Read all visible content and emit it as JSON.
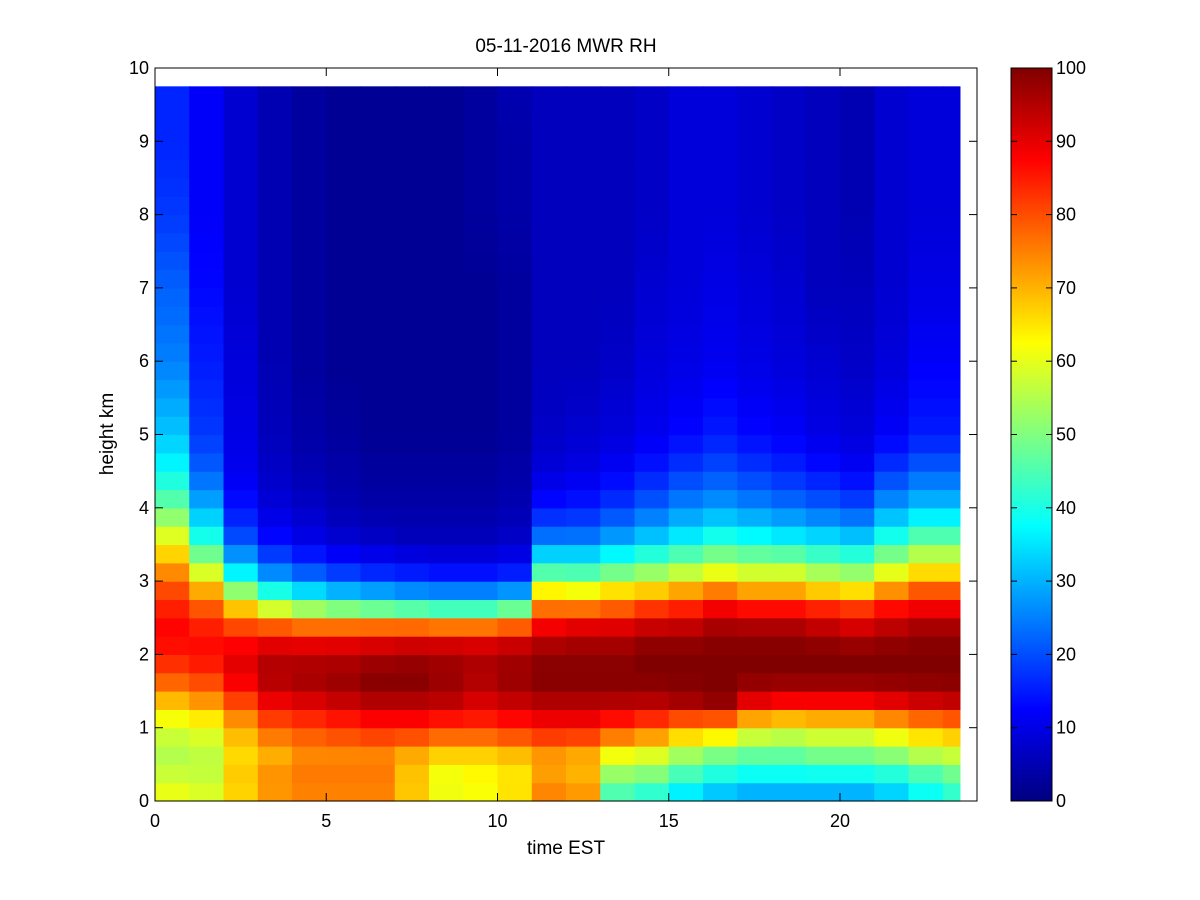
{
  "chart_data": {
    "type": "heatmap",
    "title": "05-11-2016 MWR RH",
    "xlabel": "time EST",
    "ylabel": "height km",
    "xlim": [
      0,
      24
    ],
    "ylim": [
      0,
      10
    ],
    "x_ticks": [
      0,
      5,
      10,
      15,
      20
    ],
    "y_ticks": [
      0,
      1,
      2,
      3,
      4,
      5,
      6,
      7,
      8,
      9,
      10
    ],
    "colorbar": {
      "colormap": "jet",
      "range": [
        0,
        100
      ],
      "ticks": [
        0,
        10,
        20,
        30,
        40,
        50,
        60,
        70,
        80,
        90,
        100
      ]
    },
    "x_bins_hours": [
      0,
      1,
      2,
      3,
      4,
      5,
      6,
      7,
      8,
      9,
      10,
      11,
      12,
      13,
      14,
      15,
      16,
      17,
      18,
      19,
      20,
      21,
      22,
      23
    ],
    "data_extent": {
      "x": [
        0,
        23.5
      ],
      "y": [
        0,
        9.75
      ]
    },
    "profiles": {
      "height_km": [
        0,
        0.3,
        0.6,
        1.0,
        1.4,
        1.7,
        2.0,
        2.3,
        2.6,
        2.9,
        3.2,
        3.6,
        4.0,
        4.5,
        5.0,
        6.0,
        7.0,
        8.0,
        9.0,
        9.75
      ],
      "rh_by_hour": [
        [
          62,
          58,
          55,
          58,
          70,
          80,
          85,
          88,
          85,
          80,
          72,
          60,
          48,
          38,
          32,
          25,
          22,
          18,
          16,
          16
        ],
        [
          60,
          57,
          56,
          60,
          74,
          82,
          87,
          86,
          80,
          70,
          55,
          40,
          30,
          22,
          18,
          15,
          13,
          12,
          12,
          12
        ],
        [
          66,
          68,
          66,
          70,
          82,
          90,
          90,
          84,
          70,
          50,
          32,
          20,
          14,
          11,
          10,
          9,
          8,
          8,
          8,
          8
        ],
        [
          72,
          74,
          70,
          78,
          90,
          96,
          94,
          85,
          60,
          38,
          22,
          13,
          9,
          7,
          6,
          5,
          5,
          5,
          5,
          5
        ],
        [
          74,
          76,
          74,
          80,
          92,
          97,
          94,
          84,
          55,
          32,
          18,
          10,
          7,
          5,
          4,
          3,
          3,
          3,
          3,
          3
        ],
        [
          74,
          76,
          74,
          82,
          94,
          98,
          94,
          85,
          52,
          28,
          15,
          8,
          5,
          4,
          3,
          2,
          2,
          2,
          2,
          2
        ],
        [
          74,
          76,
          74,
          84,
          96,
          100,
          95,
          86,
          50,
          26,
          13,
          7,
          4,
          3,
          2,
          2,
          2,
          2,
          2,
          2
        ],
        [
          68,
          68,
          70,
          84,
          96,
          100,
          96,
          87,
          48,
          24,
          12,
          6,
          4,
          3,
          2,
          2,
          2,
          2,
          2,
          2
        ],
        [
          62,
          60,
          66,
          82,
          95,
          98,
          96,
          86,
          46,
          23,
          11,
          6,
          4,
          3,
          2,
          2,
          2,
          2,
          2,
          2
        ],
        [
          62,
          62,
          66,
          82,
          92,
          96,
          95,
          86,
          46,
          23,
          11,
          6,
          4,
          3,
          2,
          2,
          2,
          3,
          3,
          3
        ],
        [
          66,
          64,
          68,
          84,
          94,
          98,
          96,
          88,
          50,
          25,
          12,
          7,
          5,
          4,
          3,
          3,
          3,
          4,
          4,
          5
        ],
        [
          76,
          72,
          72,
          86,
          96,
          100,
          98,
          92,
          78,
          62,
          40,
          24,
          14,
          9,
          7,
          6,
          6,
          6,
          6,
          6
        ],
        [
          74,
          70,
          70,
          86,
          96,
          100,
          98,
          94,
          78,
          60,
          40,
          24,
          15,
          10,
          8,
          6,
          6,
          6,
          6,
          6
        ],
        [
          42,
          50,
          60,
          82,
          96,
          100,
          98,
          94,
          80,
          64,
          44,
          28,
          18,
          12,
          9,
          7,
          6,
          6,
          6,
          6
        ],
        [
          38,
          48,
          58,
          78,
          96,
          100,
          100,
          96,
          84,
          66,
          48,
          32,
          22,
          15,
          11,
          9,
          8,
          7,
          7,
          7
        ],
        [
          32,
          42,
          52,
          72,
          98,
          100,
          100,
          96,
          86,
          70,
          52,
          36,
          26,
          18,
          13,
          10,
          9,
          9,
          9,
          9
        ],
        [
          28,
          38,
          48,
          70,
          100,
          100,
          100,
          98,
          90,
          74,
          56,
          40,
          28,
          20,
          15,
          11,
          10,
          9,
          9,
          9
        ],
        [
          26,
          36,
          46,
          62,
          92,
          100,
          100,
          98,
          88,
          70,
          54,
          38,
          26,
          18,
          13,
          10,
          9,
          8,
          8,
          8
        ],
        [
          26,
          36,
          46,
          60,
          90,
          100,
          100,
          98,
          88,
          70,
          54,
          36,
          24,
          16,
          12,
          9,
          8,
          7,
          7,
          7
        ],
        [
          26,
          36,
          48,
          62,
          90,
          100,
          100,
          96,
          86,
          66,
          50,
          34,
          22,
          14,
          10,
          8,
          6,
          6,
          6,
          6
        ],
        [
          26,
          36,
          48,
          62,
          90,
          100,
          100,
          94,
          84,
          64,
          48,
          32,
          20,
          12,
          9,
          7,
          6,
          5,
          5,
          5
        ],
        [
          30,
          38,
          50,
          66,
          92,
          100,
          100,
          96,
          88,
          72,
          56,
          40,
          28,
          18,
          12,
          9,
          8,
          8,
          8,
          8
        ],
        [
          36,
          42,
          54,
          70,
          94,
          100,
          100,
          98,
          90,
          78,
          62,
          46,
          32,
          22,
          15,
          12,
          10,
          9,
          9,
          9
        ],
        [
          40,
          46,
          56,
          72,
          95,
          100,
          100,
          98,
          90,
          78,
          62,
          46,
          32,
          22,
          15,
          12,
          10,
          9,
          9,
          9
        ]
      ]
    }
  }
}
